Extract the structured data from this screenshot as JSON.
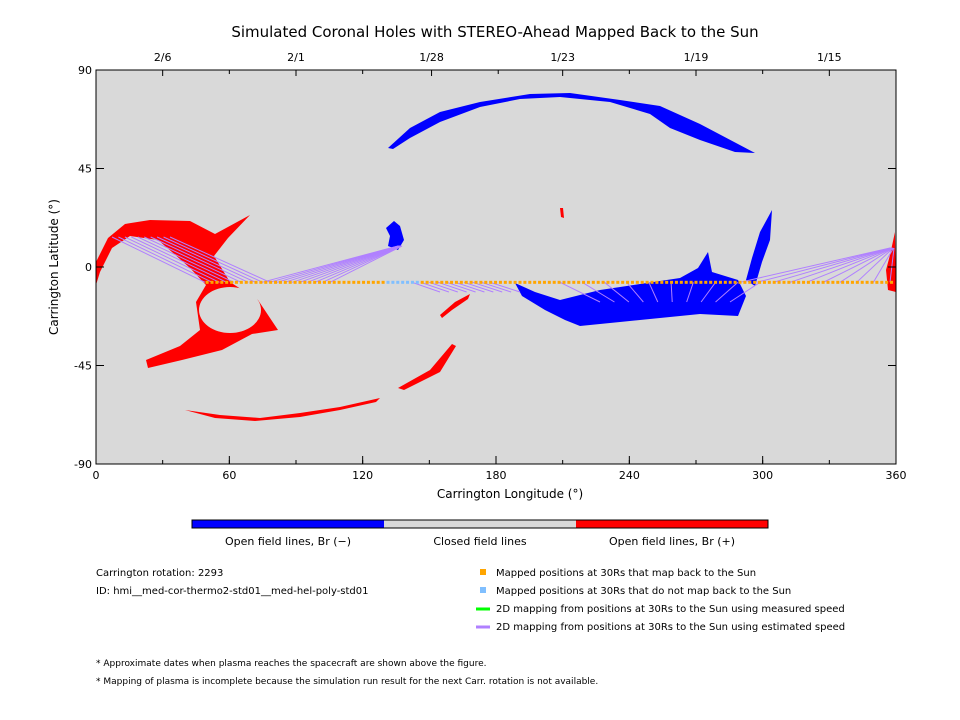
{
  "chart_data": {
    "type": "heatmap",
    "title": "Simulated Coronal Holes with STEREO-Ahead Mapped Back to the Sun",
    "xlabel": "Carrington Longitude (°)",
    "ylabel": "Carrington Latitude (°)",
    "xlim": [
      0,
      360
    ],
    "ylim": [
      -90,
      90
    ],
    "xticks": [
      "0",
      "60",
      "120",
      "180",
      "240",
      "300",
      "360"
    ],
    "yticks": [
      "90",
      "45",
      "0",
      "-45",
      "-90"
    ],
    "top_date_ticks": [
      {
        "label": "2/6",
        "lon": 30
      },
      {
        "label": "2/1",
        "lon": 90
      },
      {
        "label": "1/28",
        "lon": 151
      },
      {
        "label": "1/23",
        "lon": 210
      },
      {
        "label": "1/19",
        "lon": 270
      },
      {
        "label": "1/15",
        "lon": 330
      }
    ],
    "mapped_latitude": -7,
    "mapped_lon_range": [
      50,
      360
    ],
    "unmapped_lon_range": [
      130,
      145
    ],
    "colors": {
      "background": "#d9d9d9",
      "open_neg": "#0000ff",
      "open_pos": "#ff0000",
      "mapped": "#ffa500",
      "unmapped": "#80bfff",
      "measured": "#00ff00",
      "estimated": "#b080ff"
    },
    "colorbar": [
      "Open field lines, Br (−)",
      "Closed field lines",
      "Open field lines, Br (+)"
    ],
    "legend": [
      {
        "label": "Mapped positions at 30Rs that map back to the Sun",
        "color": "#ffa500",
        "kind": "square"
      },
      {
        "label": "Mapped positions at 30Rs that do not map back to the Sun",
        "color": "#80bfff",
        "kind": "square"
      },
      {
        "label": "2D mapping from positions at 30Rs to the Sun using measured speed",
        "color": "#00ff00",
        "kind": "line"
      },
      {
        "label": "2D mapping from positions at 30Rs to the Sun using estimated speed",
        "color": "#b080ff",
        "kind": "line"
      }
    ]
  },
  "info": {
    "rotation": "Carrington rotation: 2293",
    "id": "ID: hmi__med-cor-thermo2-std01__med-hel-poly-std01"
  },
  "notes": [
    "* Approximate dates when plasma reaches the spacecraft are shown above the figure.",
    "* Mapping of plasma is incomplete because the simulation run result for the next Carr. rotation is not available."
  ]
}
